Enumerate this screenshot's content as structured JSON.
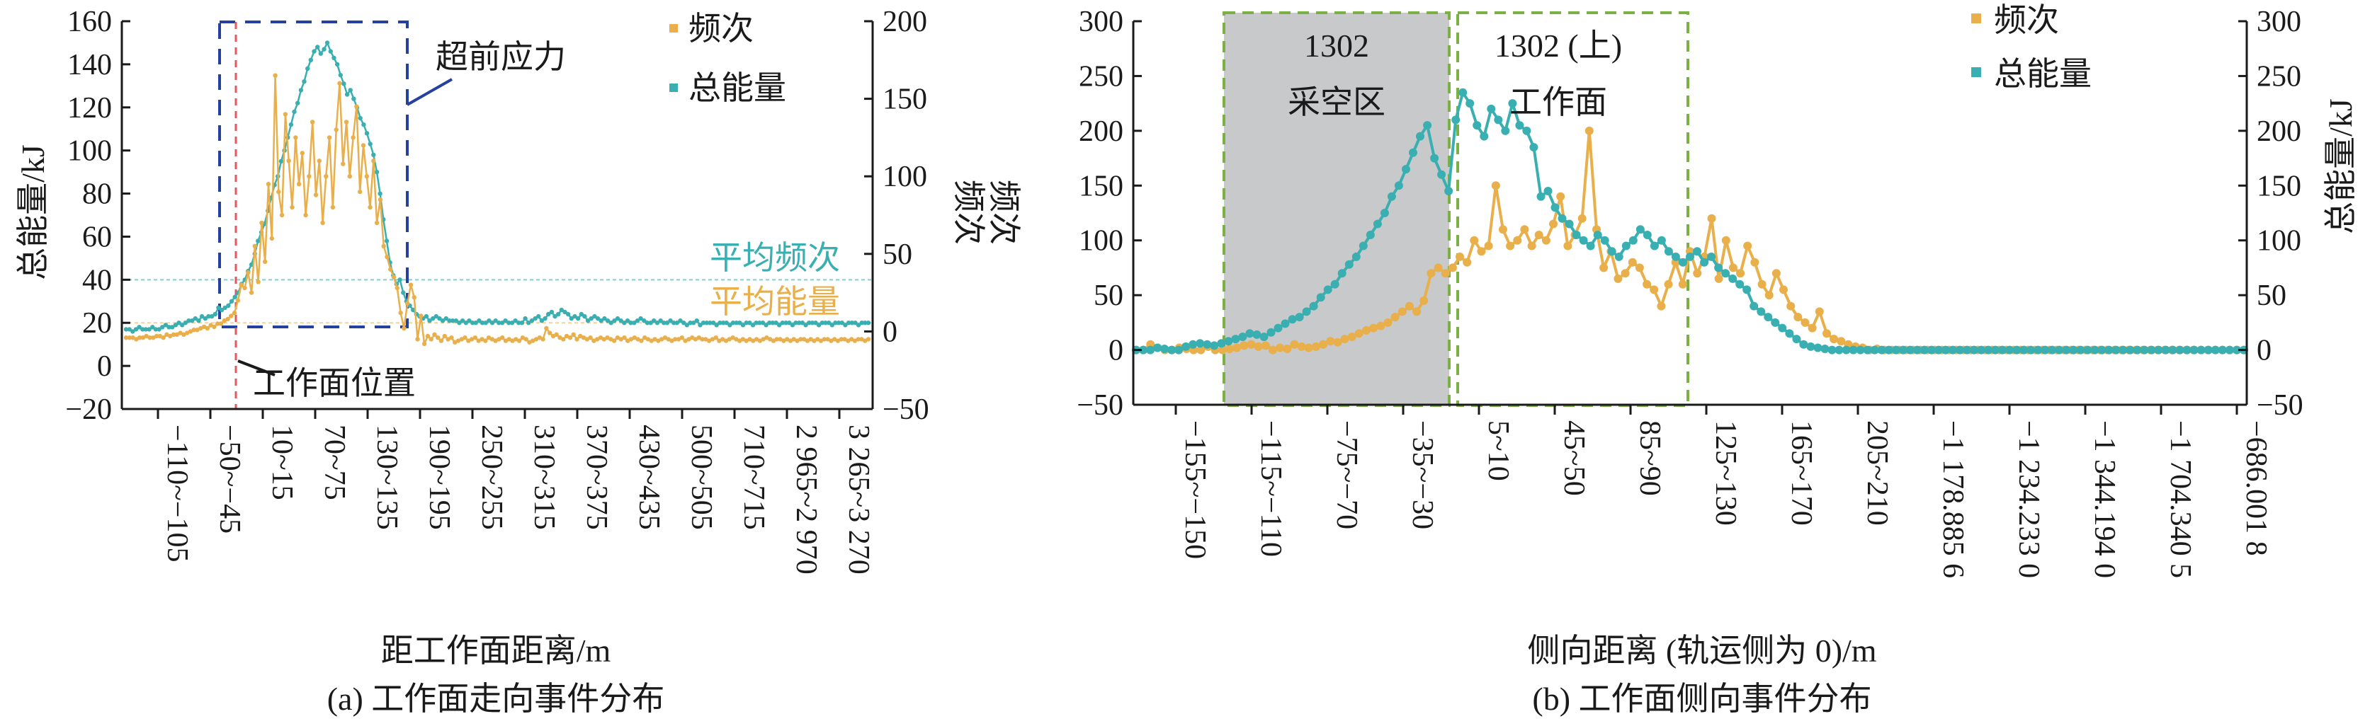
{
  "colors": {
    "frequency": "#E8AF4B",
    "energy": "#3AAFB1",
    "blue_box": "#2441A0",
    "red_line": "#E4575A",
    "green_box": "#7BB045",
    "goaf_fill": "#C8C9CB",
    "avg_line": "#7FD0D0"
  },
  "chart_data": [
    {
      "type": "line",
      "caption": "(a) 工作面走向事件分布",
      "xlabel": "距工作面距离/m",
      "ylabel_left": "总能量/kJ",
      "ylabel_right": "频次",
      "ylim_left": [
        -20,
        160
      ],
      "ylim_right": [
        -50,
        200
      ],
      "yticks_left": [
        "160",
        "140",
        "120",
        "100",
        "80",
        "60",
        "40",
        "20",
        "0",
        "−20"
      ],
      "yticks_right": [
        "200",
        "150",
        "100",
        "50",
        "0",
        "−50"
      ],
      "xtick_labels": [
        "−110~−105",
        "−50~−45",
        "10~15",
        "70~75",
        "130~135",
        "190~195",
        "250~255",
        "310~315",
        "370~375",
        "430~435",
        "500~505",
        "710~715",
        "2 965~2 970",
        "3 265~3 270"
      ],
      "legend": [
        {
          "label": "频次",
          "color_key": "frequency"
        },
        {
          "label": "总能量",
          "color_key": "energy"
        }
      ],
      "annotations": {
        "advance_stress": "超前应力",
        "face_position": "工作面位置",
        "avg_frequency": "平均频次",
        "avg_energy": "平均能量"
      },
      "avg_frequency_line": 40,
      "avg_energy_line": 20,
      "advance_stress_x_range": [
        "−55~−50",
        "185~190"
      ],
      "face_position_x": "−50~−45",
      "series": [
        {
          "name": "总能量",
          "axis": "left",
          "values": [
            17,
            17,
            16,
            17,
            18,
            17,
            17,
            17,
            18,
            17,
            17,
            18,
            19,
            18,
            18,
            19,
            20,
            19,
            20,
            21,
            21,
            22,
            21,
            23,
            22,
            23,
            23,
            24,
            27,
            26,
            27,
            28,
            30,
            32,
            34,
            38,
            40,
            44,
            47,
            52,
            58,
            62,
            66,
            72,
            78,
            84,
            88,
            95,
            100,
            106,
            112,
            118,
            122,
            128,
            132,
            138,
            142,
            146,
            148,
            145,
            147,
            150,
            146,
            143,
            140,
            135,
            131,
            126,
            128,
            124,
            120,
            115,
            112,
            108,
            103,
            98,
            90,
            80,
            68,
            58,
            48,
            42,
            38,
            40,
            34,
            30,
            28,
            26,
            24,
            23,
            22,
            23,
            21,
            22,
            23,
            22,
            21,
            22,
            21,
            21,
            21,
            20,
            21,
            20,
            21,
            20,
            20,
            21,
            20,
            20,
            21,
            20,
            21,
            20,
            20,
            21,
            20,
            20,
            21,
            20,
            20,
            22,
            20,
            21,
            22,
            23,
            21,
            22,
            24,
            25,
            23,
            24,
            26,
            25,
            24,
            22,
            23,
            22,
            24,
            23,
            21,
            22,
            23,
            22,
            21,
            22,
            21,
            20,
            21,
            22,
            21,
            20,
            21,
            20,
            20,
            21,
            22,
            21,
            20,
            20,
            21,
            20,
            21,
            20,
            20,
            21,
            20,
            20,
            21,
            20,
            19,
            20,
            20,
            21,
            19,
            20,
            20,
            20,
            20,
            19,
            20,
            20,
            20,
            19,
            20,
            20,
            20,
            19,
            20,
            20,
            19,
            20,
            20,
            20,
            19,
            20,
            20,
            20,
            19,
            20,
            20,
            20,
            19,
            20,
            20,
            20,
            19,
            20,
            20,
            20,
            19,
            20,
            20,
            20,
            19,
            20,
            20,
            20,
            19,
            20,
            20,
            20,
            19,
            20,
            20,
            20
          ]
        },
        {
          "name": "频次",
          "axis": "right",
          "values": [
            -4,
            -4,
            -4,
            -5,
            -4,
            -4,
            -3,
            -4,
            -4,
            -3,
            -3,
            -4,
            -2,
            -3,
            -2,
            -2,
            -1,
            -2,
            -1,
            0,
            1,
            1,
            2,
            3,
            2,
            4,
            3,
            5,
            5,
            7,
            8,
            10,
            12,
            20,
            30,
            28,
            38,
            25,
            55,
            32,
            70,
            45,
            95,
            60,
            165,
            90,
            75,
            140,
            110,
            80,
            125,
            95,
            115,
            75,
            100,
            135,
            88,
            110,
            70,
            100,
            125,
            80,
            130,
            160,
            108,
            135,
            100,
            125,
            145,
            90,
            120,
            100,
            80,
            110,
            70,
            85,
            55,
            48,
            40,
            35,
            28,
            12,
            2,
            18,
            30,
            22,
            -5,
            10,
            -8,
            -3,
            -5,
            -2,
            -4,
            -6,
            -3,
            -5,
            -4,
            -7,
            -6,
            -5,
            -4,
            -6,
            -5,
            -4,
            -6,
            -5,
            -6,
            -4,
            -5,
            -6,
            -5,
            -4,
            -6,
            -5,
            -6,
            -5,
            -6,
            -4,
            -5,
            -7,
            -6,
            -5,
            -4,
            -5,
            2,
            -1,
            -3,
            -2,
            -4,
            -5,
            -3,
            -4,
            -2,
            -5,
            -3,
            -4,
            -5,
            -4,
            -6,
            -5,
            -4,
            -5,
            -4,
            -5,
            -6,
            -4,
            -5,
            -4,
            -6,
            -5,
            -4,
            -5,
            -6,
            -4,
            -5,
            -6,
            -5,
            -6,
            -5,
            -4,
            -5,
            -6,
            -5,
            -5,
            -4,
            -6,
            -5,
            -4,
            -5,
            -4,
            -5,
            -5,
            -6,
            -5,
            -4,
            -6,
            -5,
            -6,
            -5,
            -4,
            -5,
            -6,
            -5,
            -6,
            -5,
            -6,
            -5,
            -6,
            -5,
            -4,
            -5,
            -6,
            -5,
            -5,
            -6,
            -5,
            -6,
            -5,
            -6,
            -5,
            -5,
            -6,
            -5,
            -6,
            -5,
            -6,
            -5,
            -5,
            -6,
            -5,
            -6,
            -5,
            -5,
            -6,
            -5,
            -6,
            -5,
            -5,
            -6,
            -5
          ]
        }
      ]
    },
    {
      "type": "line",
      "caption": "(b) 工作面侧向事件分布",
      "xlabel": "侧向距离 (轨运侧为 0)/m",
      "ylabel_left": "频次",
      "ylabel_right": "总能量/kJ",
      "ylim_left": [
        -50,
        300
      ],
      "ylim_right": [
        -50,
        300
      ],
      "yticks_left": [
        "300",
        "250",
        "200",
        "150",
        "100",
        "50",
        "0",
        "−50"
      ],
      "yticks_right": [
        "300",
        "250",
        "200",
        "150",
        "100",
        "50",
        "0",
        "−50"
      ],
      "xtick_labels": [
        "−155~−150",
        "−115~−110",
        "−75~−70",
        "−35~−30",
        "5~10",
        "45~50",
        "85~90",
        "125~130",
        "165~170",
        "205~210",
        "−1 178.885 6",
        "−1 234.233 0",
        "−1 344.194 0",
        "−1 704.340 5",
        "−686.001 8"
      ],
      "legend": [
        {
          "label": "频次",
          "color_key": "frequency"
        },
        {
          "label": "总能量",
          "color_key": "energy"
        }
      ],
      "annotations": {
        "goaf": [
          "1302",
          "采空区"
        ],
        "face": [
          "1302 (上)",
          "工作面"
        ]
      },
      "series": [
        {
          "name": "频次",
          "axis": "left",
          "values": [
            0,
            0,
            5,
            2,
            0,
            0,
            2,
            1,
            0,
            0,
            3,
            0,
            0,
            1,
            2,
            4,
            5,
            3,
            4,
            0,
            2,
            1,
            5,
            3,
            2,
            3,
            5,
            8,
            7,
            10,
            12,
            15,
            18,
            20,
            22,
            25,
            30,
            35,
            40,
            35,
            45,
            70,
            75,
            70,
            75,
            85,
            80,
            100,
            90,
            95,
            150,
            110,
            95,
            100,
            110,
            95,
            105,
            100,
            115,
            140,
            95,
            105,
            120,
            200,
            110,
            75,
            90,
            65,
            70,
            80,
            75,
            60,
            55,
            40,
            60,
            80,
            60,
            90,
            70,
            85,
            120,
            65,
            100,
            75,
            70,
            95,
            80,
            60,
            50,
            70,
            55,
            40,
            30,
            25,
            20,
            35,
            15,
            10,
            8,
            5,
            3,
            2,
            0,
            1,
            0,
            0,
            0,
            0,
            0,
            0,
            0,
            0,
            0,
            0,
            0,
            0,
            0,
            0,
            0,
            0,
            0,
            0,
            0,
            0,
            0,
            0,
            0,
            0,
            0,
            0,
            0,
            0,
            0,
            0,
            0,
            0,
            0,
            0,
            0,
            0,
            0,
            0,
            0,
            0,
            0,
            0,
            0,
            0,
            0,
            0,
            0,
            0,
            0,
            0,
            0
          ]
        },
        {
          "name": "总能量",
          "axis": "right",
          "values": [
            0,
            0,
            0,
            2,
            1,
            0,
            0,
            3,
            5,
            6,
            5,
            4,
            6,
            8,
            10,
            12,
            15,
            14,
            12,
            16,
            20,
            24,
            28,
            30,
            35,
            40,
            48,
            55,
            60,
            70,
            78,
            85,
            95,
            105,
            115,
            125,
            140,
            150,
            165,
            180,
            195,
            205,
            175,
            160,
            145,
            210,
            235,
            225,
            205,
            195,
            220,
            210,
            200,
            225,
            205,
            200,
            185,
            140,
            145,
            130,
            120,
            115,
            105,
            100,
            95,
            105,
            100,
            90,
            85,
            95,
            100,
            110,
            105,
            95,
            100,
            90,
            85,
            80,
            85,
            90,
            80,
            85,
            75,
            70,
            65,
            60,
            55,
            40,
            35,
            30,
            25,
            20,
            15,
            10,
            5,
            3,
            2,
            1,
            0,
            0,
            0,
            0,
            0,
            0,
            0,
            0,
            0,
            0,
            0,
            0,
            0,
            0,
            0,
            0,
            0,
            0,
            0,
            0,
            0,
            0,
            0,
            0,
            0,
            0,
            0,
            0,
            0,
            0,
            0,
            0,
            0,
            0,
            0,
            0,
            0,
            0,
            0,
            0,
            0,
            0,
            0,
            0,
            0,
            0,
            0,
            0,
            0,
            0,
            0,
            0,
            0,
            0,
            0,
            0,
            0,
            0,
            0
          ]
        }
      ]
    }
  ]
}
